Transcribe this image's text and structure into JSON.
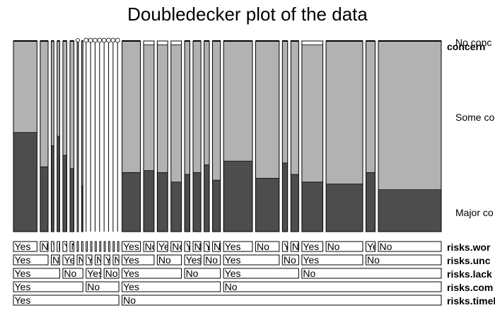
{
  "chart_data": {
    "type": "doubledecker",
    "title": "Doubledecker plot of the data",
    "response": {
      "name": "concern",
      "levels": [
        "Major concern",
        "Some concern",
        "No concern"
      ],
      "shown_labels": [
        "No conc",
        "Some co",
        "Major co"
      ],
      "colors": [
        "#4d4d4d",
        "#b2b2b2",
        "#ffffff"
      ]
    },
    "factors": [
      {
        "label": "risks.timeline",
        "levels": [
          "Yes",
          "No"
        ]
      },
      {
        "label": "risks.com",
        "levels": [
          "Yes",
          "No"
        ]
      },
      {
        "label": "risks.lack",
        "levels": [
          "Yes",
          "No"
        ]
      },
      {
        "label": "risks.unc",
        "levels": [
          "Yes",
          "No"
        ]
      },
      {
        "label": "risks.wor",
        "levels": [
          "Yes",
          "No"
        ]
      }
    ],
    "cells": [
      {
        "path": "YYYYY",
        "count": 18,
        "major": 0.52,
        "some": 0.48,
        "no": 0.0
      },
      {
        "path": "YYYYN",
        "count": 6,
        "major": 0.34,
        "some": 0.66,
        "no": 0.0
      },
      {
        "path": "YYYNY",
        "count": 2,
        "major": 0.45,
        "some": 0.55,
        "no": 0.0
      },
      {
        "path": "YYYNN",
        "count": 2,
        "major": 0.5,
        "some": 0.5,
        "no": 0.0
      },
      {
        "path": "YYNYY",
        "count": 3,
        "major": 0.4,
        "some": 0.6,
        "no": 0.0
      },
      {
        "path": "YYNYN",
        "count": 3,
        "major": 0.33,
        "some": 0.67,
        "no": 0.0
      },
      {
        "path": "YYNNY",
        "count": 1,
        "major": 0.0,
        "some": 1.0,
        "no": 0.0
      },
      {
        "path": "YYNNN",
        "count": 1,
        "major": 0.24,
        "some": 0.76,
        "no": 0.0
      },
      {
        "path": "YNYYY",
        "count": 1,
        "major": 0,
        "some": 0,
        "no": 0
      },
      {
        "path": "YNYYN",
        "count": 1,
        "major": 0,
        "some": 0,
        "no": 0
      },
      {
        "path": "YNYNY",
        "count": 1,
        "major": 0,
        "some": 0,
        "no": 0
      },
      {
        "path": "YNYNN",
        "count": 1,
        "major": 0,
        "some": 0,
        "no": 0
      },
      {
        "path": "YNNYY",
        "count": 1,
        "major": 0,
        "some": 0,
        "no": 0
      },
      {
        "path": "YNNYN",
        "count": 1,
        "major": 0,
        "some": 0,
        "no": 0
      },
      {
        "path": "YNNNY",
        "count": 1,
        "major": 0,
        "some": 0,
        "no": 0
      },
      {
        "path": "YNNNN",
        "count": 1,
        "major": 0,
        "some": 0,
        "no": 0
      },
      {
        "path": "NYYYY",
        "count": 14,
        "major": 0.31,
        "some": 0.69,
        "no": 0.0
      },
      {
        "path": "NYYYN",
        "count": 8,
        "major": 0.32,
        "some": 0.66,
        "no": 0.02
      },
      {
        "path": "NYYNY",
        "count": 8,
        "major": 0.31,
        "some": 0.67,
        "no": 0.02
      },
      {
        "path": "NYYNN",
        "count": 8,
        "major": 0.26,
        "some": 0.72,
        "no": 0.02
      },
      {
        "path": "NYNYY",
        "count": 4,
        "major": 0.3,
        "some": 0.7,
        "no": 0.0
      },
      {
        "path": "NYNYN",
        "count": 6,
        "major": 0.31,
        "some": 0.69,
        "no": 0.0
      },
      {
        "path": "NYNNY",
        "count": 4,
        "major": 0.35,
        "some": 0.65,
        "no": 0.0
      },
      {
        "path": "NYNNN",
        "count": 6,
        "major": 0.27,
        "some": 0.73,
        "no": 0.0
      },
      {
        "path": "NNYYY",
        "count": 22,
        "major": 0.37,
        "some": 0.63,
        "no": 0.0
      },
      {
        "path": "NNYYN",
        "count": 18,
        "major": 0.28,
        "some": 0.72,
        "no": 0.0
      },
      {
        "path": "NNYNY",
        "count": 4,
        "major": 0.36,
        "some": 0.64,
        "no": 0.0
      },
      {
        "path": "NNYNN",
        "count": 6,
        "major": 0.3,
        "some": 0.7,
        "no": 0.0
      },
      {
        "path": "NNNYY",
        "count": 16,
        "major": 0.26,
        "some": 0.72,
        "no": 0.02
      },
      {
        "path": "NNNYN",
        "count": 28,
        "major": 0.25,
        "some": 0.75,
        "no": 0.0
      },
      {
        "path": "NNNNY",
        "count": 7,
        "major": 0.31,
        "some": 0.69,
        "no": 0.0
      },
      {
        "path": "NNNNN",
        "count": 48,
        "major": 0.22,
        "some": 0.78,
        "no": 0.0
      }
    ]
  }
}
